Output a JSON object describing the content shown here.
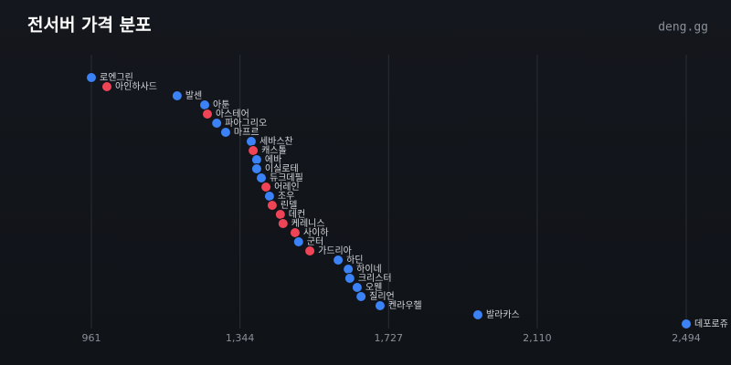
{
  "chart_data": {
    "type": "dot",
    "title": "전서버 가격 분포",
    "source": "deng.gg",
    "categories": [
      "로엔그린",
      "아인하사드",
      "발센",
      "아툰",
      "아스테어",
      "파아그리오",
      "마프르",
      "세바스찬",
      "캐스톨",
      "에바",
      "이실로테",
      "듀크데필",
      "어레인",
      "조우",
      "린델",
      "데컨",
      "케레니스",
      "사이하",
      "군터",
      "가드리아",
      "하딘",
      "하이네",
      "크리스터",
      "오웬",
      "질리언",
      "켄라우헬",
      "발라카스",
      "데포로쥬"
    ],
    "values": [
      961,
      1001,
      1182,
      1253,
      1260,
      1284,
      1307,
      1373,
      1378,
      1387,
      1387,
      1399,
      1411,
      1420,
      1427,
      1448,
      1455,
      1486,
      1495,
      1524,
      1597,
      1623,
      1627,
      1646,
      1656,
      1705,
      1957,
      2494
    ],
    "colors": [
      "#3b82f6",
      "#ef4456",
      "#3b82f6",
      "#3b82f6",
      "#ef4456",
      "#3b82f6",
      "#3b82f6",
      "#3b82f6",
      "#ef4456",
      "#3b82f6",
      "#3b82f6",
      "#3b82f6",
      "#ef4456",
      "#3b82f6",
      "#ef4456",
      "#ef4456",
      "#ef4456",
      "#ef4456",
      "#3b82f6",
      "#ef4456",
      "#3b82f6",
      "#3b82f6",
      "#3b82f6",
      "#3b82f6",
      "#3b82f6",
      "#3b82f6",
      "#3b82f6",
      "#3b82f6"
    ],
    "xlim": [
      961,
      2494
    ],
    "xticks": [
      961,
      {
        "value": 1344,
        "label": "1,344"
      },
      {
        "value": 1727,
        "label": "1,727"
      },
      {
        "value": 2110,
        "label": "2,110"
      },
      {
        "value": 2494,
        "label": "2,494"
      }
    ],
    "grid": true
  }
}
